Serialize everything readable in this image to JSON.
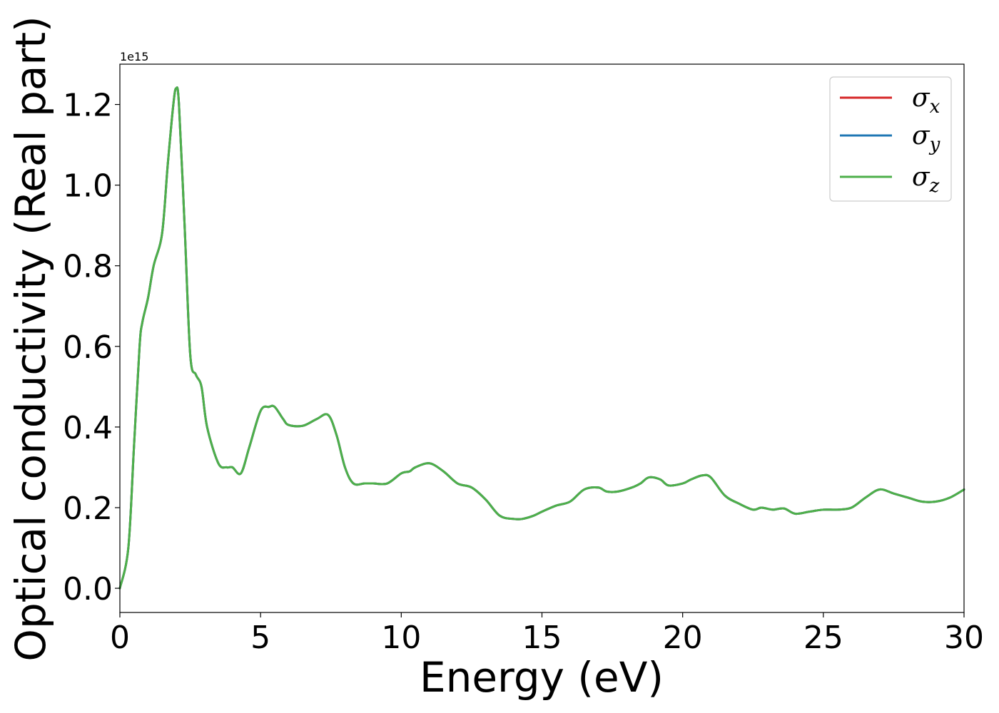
{
  "chart_data": {
    "type": "line",
    "title": "",
    "xlabel": "Energy (eV)",
    "ylabel": "Optical conductivity (Real part)",
    "y_offset_label": "1e15",
    "xlim": [
      0,
      30
    ],
    "ylim": [
      -0.06,
      1.3
    ],
    "x_ticks": [
      0,
      5,
      10,
      15,
      20,
      25,
      30
    ],
    "x_tick_labels": [
      "0",
      "5",
      "10",
      "15",
      "20",
      "25",
      "30"
    ],
    "y_ticks": [
      0.0,
      0.2,
      0.4,
      0.6,
      0.8,
      1.0,
      1.2
    ],
    "y_tick_labels": [
      "0.0",
      "0.2",
      "0.4",
      "0.6",
      "0.8",
      "1.0",
      "1.2"
    ],
    "grid": false,
    "legend_position": "upper right",
    "x": [
      0,
      0.3,
      0.5,
      0.7,
      0.8,
      1.0,
      1.2,
      1.5,
      1.7,
      1.9,
      2.0,
      2.1,
      2.3,
      2.5,
      2.7,
      2.9,
      3.1,
      3.5,
      3.8,
      4.0,
      4.3,
      4.6,
      5.0,
      5.3,
      5.5,
      5.8,
      6.0,
      6.5,
      7.0,
      7.4,
      7.7,
      8.0,
      8.3,
      8.7,
      9.0,
      9.5,
      10.0,
      10.3,
      10.5,
      11.0,
      11.5,
      12.0,
      12.5,
      13.0,
      13.5,
      14.0,
      14.3,
      14.7,
      15.0,
      15.5,
      16.0,
      16.5,
      17.0,
      17.3,
      17.7,
      18.2,
      18.5,
      18.8,
      19.2,
      19.5,
      20.0,
      20.3,
      20.7,
      21.0,
      21.5,
      22.0,
      22.5,
      22.8,
      23.2,
      23.6,
      24.0,
      24.5,
      25.0,
      25.5,
      26.0,
      26.5,
      27.0,
      27.5,
      28.0,
      28.5,
      29.0,
      29.5,
      30.0
    ],
    "series": [
      {
        "name": "σx",
        "color": "#d62728",
        "y": [
          0.0,
          0.1,
          0.35,
          0.6,
          0.66,
          0.72,
          0.8,
          0.88,
          1.05,
          1.2,
          1.24,
          1.2,
          0.9,
          0.58,
          0.53,
          0.5,
          0.4,
          0.31,
          0.3,
          0.3,
          0.285,
          0.35,
          0.44,
          0.45,
          0.45,
          0.42,
          0.405,
          0.403,
          0.42,
          0.43,
          0.38,
          0.3,
          0.26,
          0.26,
          0.26,
          0.26,
          0.285,
          0.29,
          0.3,
          0.31,
          0.29,
          0.26,
          0.25,
          0.22,
          0.18,
          0.172,
          0.172,
          0.18,
          0.19,
          0.205,
          0.215,
          0.245,
          0.25,
          0.24,
          0.24,
          0.25,
          0.26,
          0.275,
          0.27,
          0.255,
          0.26,
          0.27,
          0.28,
          0.275,
          0.23,
          0.21,
          0.195,
          0.2,
          0.195,
          0.198,
          0.185,
          0.19,
          0.195,
          0.195,
          0.2,
          0.225,
          0.245,
          0.235,
          0.225,
          0.215,
          0.215,
          0.225,
          0.245
        ]
      },
      {
        "name": "σy",
        "color": "#1f77b4",
        "y": [
          0.0,
          0.1,
          0.35,
          0.6,
          0.66,
          0.72,
          0.8,
          0.88,
          1.05,
          1.2,
          1.24,
          1.2,
          0.9,
          0.58,
          0.53,
          0.5,
          0.4,
          0.31,
          0.3,
          0.3,
          0.285,
          0.35,
          0.44,
          0.45,
          0.45,
          0.42,
          0.405,
          0.403,
          0.42,
          0.43,
          0.38,
          0.3,
          0.26,
          0.26,
          0.26,
          0.26,
          0.285,
          0.29,
          0.3,
          0.31,
          0.29,
          0.26,
          0.25,
          0.22,
          0.18,
          0.172,
          0.172,
          0.18,
          0.19,
          0.205,
          0.215,
          0.245,
          0.25,
          0.24,
          0.24,
          0.25,
          0.26,
          0.275,
          0.27,
          0.255,
          0.26,
          0.27,
          0.28,
          0.275,
          0.23,
          0.21,
          0.195,
          0.2,
          0.195,
          0.198,
          0.185,
          0.19,
          0.195,
          0.195,
          0.2,
          0.225,
          0.245,
          0.235,
          0.225,
          0.215,
          0.215,
          0.225,
          0.245
        ]
      },
      {
        "name": "σz",
        "color": "#4daf4a",
        "y": [
          0.0,
          0.1,
          0.35,
          0.6,
          0.66,
          0.72,
          0.8,
          0.88,
          1.05,
          1.2,
          1.24,
          1.2,
          0.9,
          0.58,
          0.53,
          0.5,
          0.4,
          0.31,
          0.3,
          0.3,
          0.285,
          0.35,
          0.44,
          0.45,
          0.45,
          0.42,
          0.405,
          0.403,
          0.42,
          0.43,
          0.38,
          0.3,
          0.26,
          0.26,
          0.26,
          0.26,
          0.285,
          0.29,
          0.3,
          0.31,
          0.29,
          0.26,
          0.25,
          0.22,
          0.18,
          0.172,
          0.172,
          0.18,
          0.19,
          0.205,
          0.215,
          0.245,
          0.25,
          0.24,
          0.24,
          0.25,
          0.26,
          0.275,
          0.27,
          0.255,
          0.26,
          0.27,
          0.28,
          0.275,
          0.23,
          0.21,
          0.195,
          0.2,
          0.195,
          0.198,
          0.185,
          0.19,
          0.195,
          0.195,
          0.2,
          0.225,
          0.245,
          0.235,
          0.225,
          0.215,
          0.215,
          0.225,
          0.245
        ]
      }
    ],
    "legend": [
      {
        "symbol": "σ",
        "subscript": "x"
      },
      {
        "symbol": "σ",
        "subscript": "y"
      },
      {
        "symbol": "σ",
        "subscript": "z"
      }
    ]
  }
}
